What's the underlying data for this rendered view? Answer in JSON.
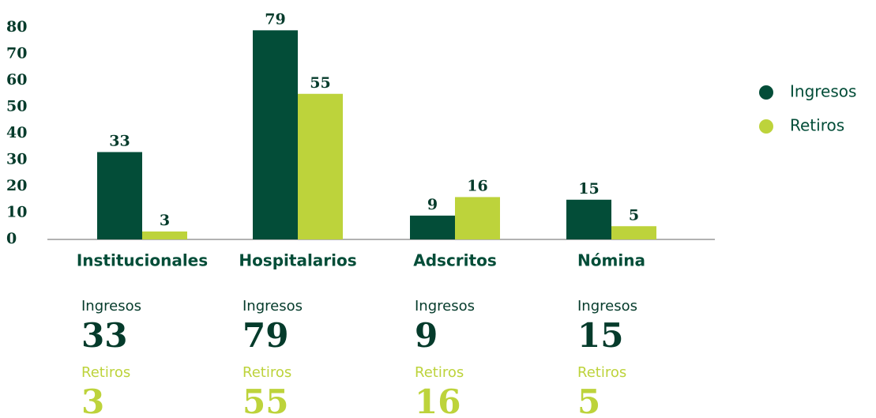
{
  "chart_data": {
    "type": "bar",
    "categories": [
      "Institucionales",
      "Hospitalarios",
      "Adscritos",
      "Nómina"
    ],
    "series": [
      {
        "name": "Ingresos",
        "color": "#034d38",
        "values": [
          33,
          79,
          9,
          15
        ]
      },
      {
        "name": "Retiros",
        "color": "#bdd33b",
        "values": [
          3,
          55,
          16,
          5
        ]
      }
    ],
    "ylim": [
      0,
      80
    ],
    "yticks": [
      0,
      10,
      20,
      30,
      40,
      50,
      60,
      70,
      80
    ],
    "grid": false,
    "legend": "right"
  }
}
